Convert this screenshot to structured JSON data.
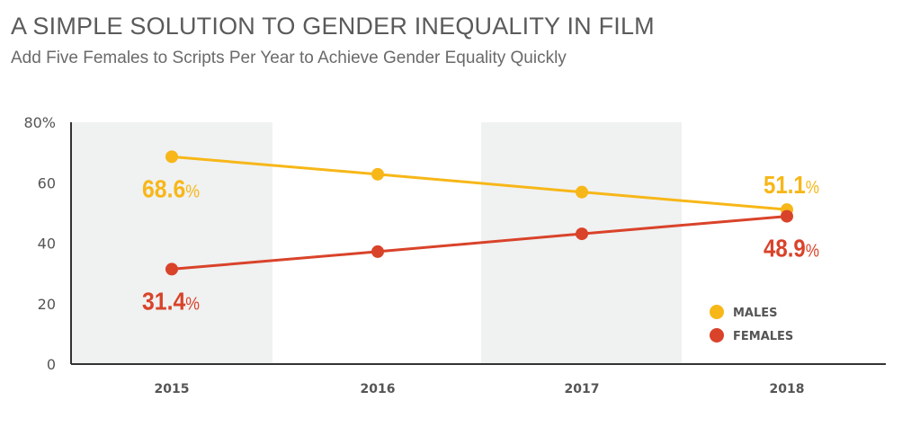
{
  "chart_data": {
    "type": "line",
    "title": "A SIMPLE SOLUTION TO GENDER INEQUALITY IN FILM",
    "subtitle": "Add Five Females to Scripts Per Year to Achieve Gender Equality Quickly",
    "categories": [
      "2015",
      "2016",
      "2017",
      "2018"
    ],
    "yticks": [
      "0",
      "20",
      "40",
      "60",
      "80%"
    ],
    "ylim": [
      0,
      80
    ],
    "series": [
      {
        "name": "MALES",
        "color": "#f7b718",
        "values": [
          68.6,
          62.8,
          56.9,
          51.1
        ],
        "labels": {
          "0": "68.6%",
          "3": "51.1%"
        }
      },
      {
        "name": "FEMALES",
        "color": "#d9432a",
        "values": [
          31.4,
          37.2,
          43.1,
          48.9
        ],
        "labels": {
          "0": "31.4%",
          "3": "48.9%"
        }
      }
    ],
    "legend": "bottom-right",
    "grid": false,
    "shaded_bands": [
      "2015",
      "2017"
    ]
  }
}
